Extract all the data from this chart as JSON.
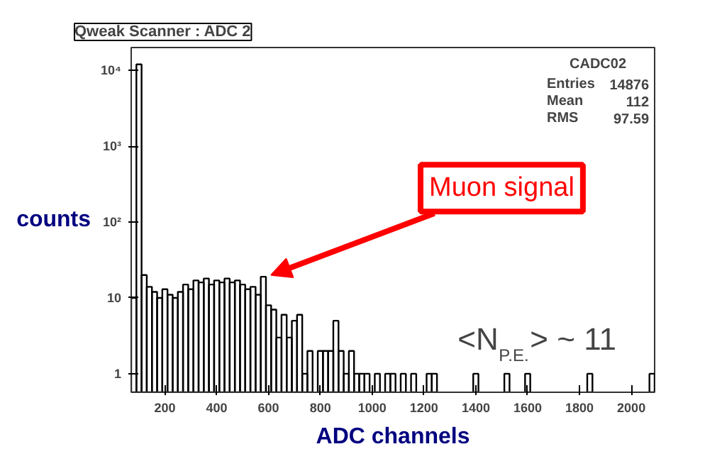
{
  "chart_data": {
    "type": "histogram",
    "title": "Qweak Scanner : ADC 2",
    "xlabel": "ADC channels",
    "ylabel": "counts",
    "bins": [
      70,
      90,
      110,
      130,
      150,
      170,
      190,
      210,
      230,
      250,
      270,
      290,
      310,
      330,
      350,
      370,
      390,
      410,
      430,
      450,
      470,
      490,
      510,
      530,
      550,
      570,
      590,
      610,
      630,
      650,
      670,
      690,
      710,
      730,
      750,
      770,
      790,
      810,
      830,
      850,
      870,
      890,
      910,
      930,
      950,
      970,
      990,
      1010,
      1030,
      1050,
      1070,
      1090,
      1110,
      1130,
      1150,
      1170,
      1190,
      1210,
      1230,
      1250,
      1270,
      1290,
      1310,
      1330,
      1350,
      1370,
      1390,
      1410,
      1430,
      1450,
      1470,
      1490,
      1510,
      1530,
      1550,
      1570,
      1590,
      1610,
      1630,
      1650,
      1670,
      1690,
      1710,
      1730,
      1750,
      1770,
      1790,
      1810,
      1830,
      1850,
      1870,
      1890,
      1910,
      1930,
      1950,
      1970,
      1990,
      2010,
      2030,
      2050,
      2070,
      2090
    ],
    "values": [
      10,
      12000,
      20,
      14,
      12,
      10,
      13,
      11,
      10,
      12,
      15,
      13,
      17,
      16,
      18,
      15,
      17,
      16,
      18,
      16,
      17,
      15,
      13,
      14,
      11,
      19,
      8,
      7,
      3,
      6,
      3,
      5,
      6,
      1,
      2,
      null,
      2,
      2,
      2,
      5,
      2,
      1,
      2,
      1,
      1,
      1,
      null,
      1,
      null,
      1,
      1,
      null,
      1,
      null,
      1,
      null,
      null,
      1,
      1,
      null,
      null,
      null,
      null,
      null,
      null,
      null,
      1,
      null,
      null,
      null,
      null,
      null,
      1,
      null,
      null,
      null,
      1,
      null,
      null,
      null,
      null,
      null,
      null,
      null,
      null,
      null,
      null,
      null,
      1,
      null,
      null,
      null,
      null,
      null,
      null,
      null,
      null,
      null,
      null,
      null,
      1
    ],
    "color": "#000000",
    "log": true,
    "grid": false,
    "xlim": [
      70,
      2090
    ],
    "ylim": [
      0.57,
      20000
    ],
    "xticks": [
      200,
      400,
      600,
      800,
      1000,
      1200,
      1400,
      1600,
      1800,
      2000
    ],
    "yticks": [
      1,
      10,
      {
        "value": 100,
        "label": "10²"
      },
      {
        "value": 1000,
        "label": "10³"
      },
      {
        "value": 10000,
        "label": "10⁴"
      }
    ],
    "annotations": [
      {
        "text": "Muon signal",
        "x": 600,
        "y": 20
      },
      "<N$_{P.E.}$> ~ 11",
      "CADC02",
      "Entries 14876",
      "Mean 112",
      "RMS 97.59"
    ]
  }
}
